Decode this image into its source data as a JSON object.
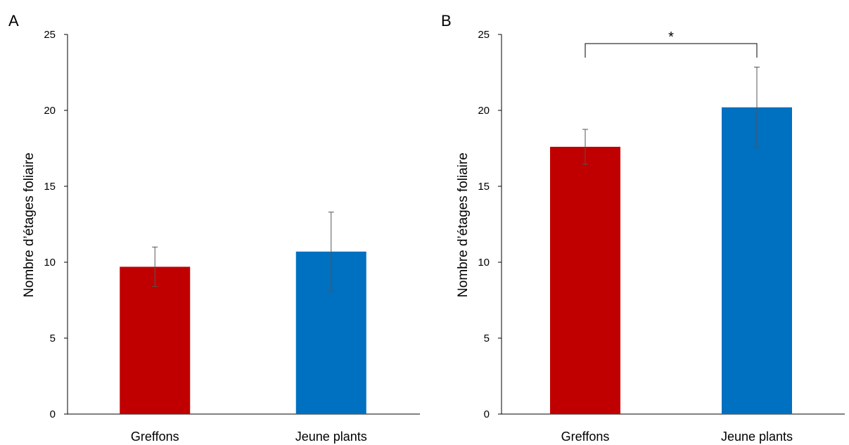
{
  "chart_data": [
    {
      "type": "bar",
      "panel_label": "A",
      "categories": [
        "Greffons",
        "Jeune plants"
      ],
      "values": [
        9.7,
        10.7
      ],
      "error": [
        1.3,
        2.6
      ],
      "colors": [
        "#C00000",
        "#0070C0"
      ],
      "ylabel": "Nombre d’étages foliaire",
      "ylim": [
        0,
        25
      ],
      "yticks": [
        "0",
        "5",
        "10",
        "15",
        "20",
        "25"
      ],
      "grid": false,
      "significance": null
    },
    {
      "type": "bar",
      "panel_label": "B",
      "categories": [
        "Greffons",
        "Jeune plants"
      ],
      "values": [
        17.6,
        20.2
      ],
      "error": [
        1.15,
        2.65
      ],
      "colors": [
        "#C00000",
        "#0070C0"
      ],
      "ylabel": "Nombre d’étages foliaire",
      "ylim": [
        0,
        25
      ],
      "yticks": [
        "0",
        "5",
        "10",
        "15",
        "20",
        "25"
      ],
      "grid": false,
      "significance": {
        "label": "*",
        "between": [
          0,
          1
        ]
      }
    }
  ]
}
